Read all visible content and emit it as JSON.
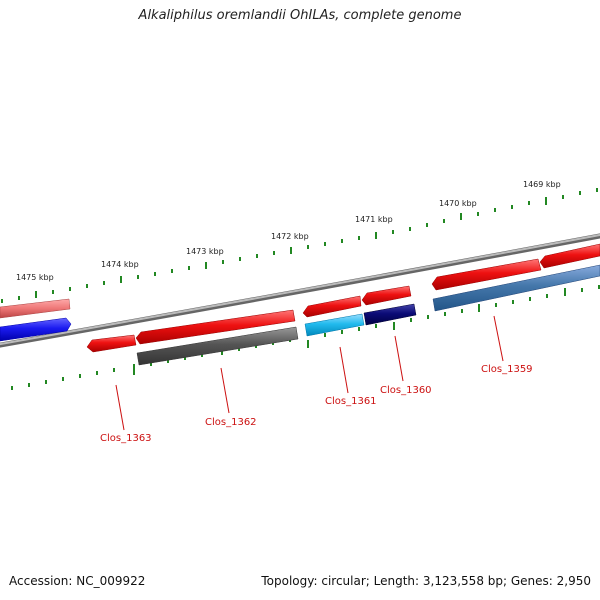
{
  "title": "Alkaliphilus oremlandii OhILAs, complete genome",
  "footer": {
    "accession": "Accession: NC_009922",
    "topology": "Topology: circular; Length: 3,123,558 bp; Genes: 2,950"
  },
  "scale_labels": [
    "1475 kbp",
    "1474 kbp",
    "1473 kbp",
    "1472 kbp",
    "1471 kbp",
    "1470 kbp",
    "1469 kbp"
  ],
  "gene_labels": [
    "Clos_1363",
    "Clos_1362",
    "Clos_1361",
    "Clos_1360",
    "Clos_1359"
  ],
  "colors": {
    "forward_red": "#ee1111",
    "light_red": "#ee7777",
    "reverse_blue": "#1a1af0",
    "dark_gray": "#555555",
    "cyan": "#22bbee",
    "navy": "#0b0b77",
    "steel_blue": "#4477aa",
    "tick_green": "#228822",
    "backbone": "#888888",
    "label_red": "#cc1111"
  }
}
